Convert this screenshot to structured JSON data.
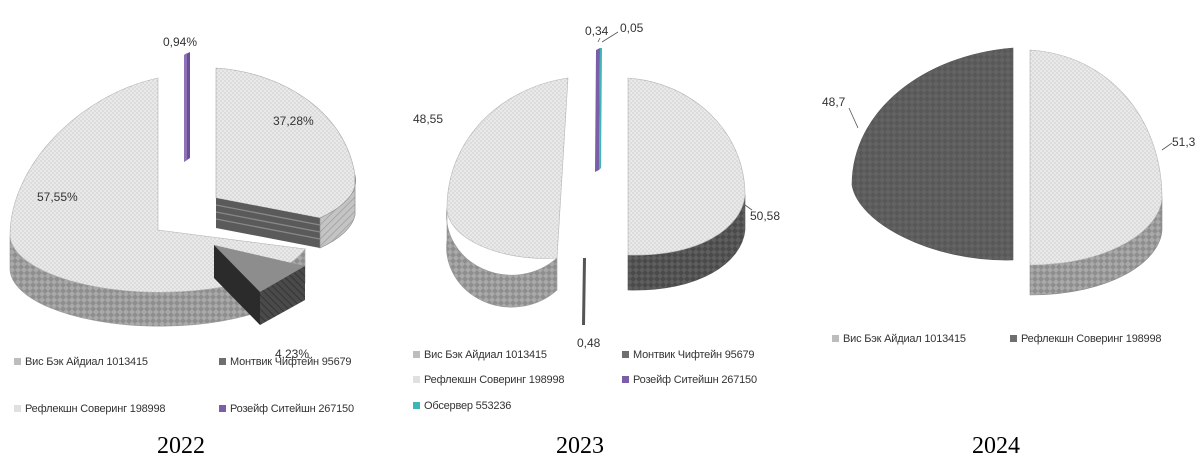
{
  "chart_data": [
    {
      "type": "pie",
      "title": "",
      "caption": "2022",
      "slices": [
        {
          "label": "Вис Бэк Айдиал 1013415",
          "value": 57.55,
          "value_label": "57,55%",
          "color": "#d6d6d6"
        },
        {
          "label": "Розейф Ситейшн 267150",
          "value": 0.94,
          "value_label": "0,94%",
          "color": "#7b5ea7"
        },
        {
          "label": "Монтвик Чифтейн 95679",
          "value": 37.28,
          "value_label": "37,28%",
          "color": "#bdbdbd"
        },
        {
          "label": "Рефлекшн Соверинг 198998",
          "value": 4.23,
          "value_label": "4,23%",
          "color": "#3a3a3a"
        }
      ],
      "legend": [
        {
          "label": "Вис Бэк Айдиал 1013415",
          "color": "#bdbdbd"
        },
        {
          "label": "Монтвик Чифтейн 95679",
          "color": "#6e6e6e"
        },
        {
          "label": "Рефлекшн Соверинг 198998",
          "color": "#e0e0e0"
        },
        {
          "label": "Розейф Ситейшн 267150",
          "color": "#7b5ea7"
        }
      ]
    },
    {
      "type": "pie",
      "title": "",
      "caption": "2023",
      "slices": [
        {
          "label": "Вис Бэк Айдиал 1013415",
          "value": 50.58,
          "value_label": "50,58",
          "color": "#c8c8c8"
        },
        {
          "label": "Монтвик Чифтейн 95679",
          "value": 0.48,
          "value_label": "0,48",
          "color": "#555555"
        },
        {
          "label": "Рефлекшн Соверинг 198998",
          "value": 48.55,
          "value_label": "48,55",
          "color": "#dcdcdc"
        },
        {
          "label": "Розейф Ситейшн 267150",
          "value": 0.34,
          "value_label": "0,34",
          "color": "#7b5ea7"
        },
        {
          "label": "Обсервер 553236",
          "value": 0.05,
          "value_label": "0,05",
          "color": "#3cb6b6"
        }
      ],
      "legend": [
        {
          "label": "Вис Бэк Айдиал 1013415",
          "color": "#bdbdbd"
        },
        {
          "label": "Монтвик Чифтейн 95679",
          "color": "#6e6e6e"
        },
        {
          "label": "Рефлекшн Соверинг 198998",
          "color": "#e0e0e0"
        },
        {
          "label": "Розейф Ситейшн 267150",
          "color": "#7b5ea7"
        },
        {
          "label": "Обсервер  553236",
          "color": "#3cb6b6"
        }
      ]
    },
    {
      "type": "pie",
      "title": "",
      "caption": "2024",
      "slices": [
        {
          "label": "Вис Бэк Айдиал 1013415",
          "value": 51.3,
          "value_label": "51,3",
          "color": "#cfcfcf"
        },
        {
          "label": "Рефлекшн Соверинг 198998",
          "value": 48.7,
          "value_label": "48,7",
          "color": "#6a6a6a"
        }
      ],
      "legend": [
        {
          "label": "Вис Бэк Айдиал 1013415",
          "color": "#bdbdbd"
        },
        {
          "label": "Рефлекшн Соверинг 198998",
          "color": "#6e6e6e"
        }
      ]
    }
  ]
}
